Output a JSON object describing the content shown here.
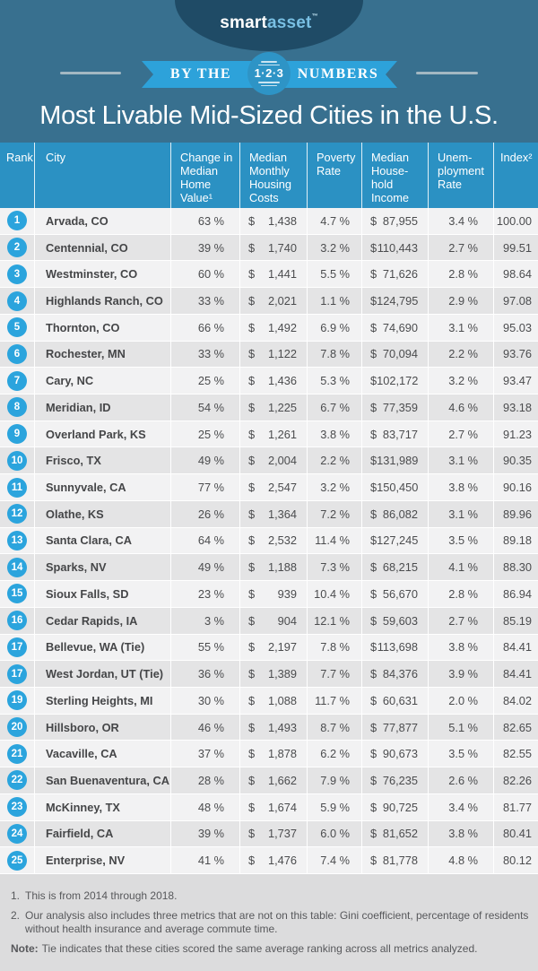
{
  "logo": {
    "smart": "smart",
    "asset": "asset",
    "tm": "™"
  },
  "banner": {
    "prefix": "BY THE",
    "numbers": "1·2·3",
    "suffix": "NUMBERS"
  },
  "chart_data": {
    "type": "table",
    "title": "Most Livable Mid-Sized Cities in the U.S.",
    "currency": "$",
    "columns": [
      "Rank",
      "City",
      "Change in Median Home Value¹",
      "Median Monthly Housing Costs",
      "Poverty Rate",
      "Median House-hold Income",
      "Unem-ployment Rate",
      "Index²"
    ],
    "rows": [
      {
        "rank": "1",
        "city": "Arvada, CO",
        "change": "63 %",
        "housing": "1,438",
        "poverty": "4.7 %",
        "income": "87,955",
        "unemployment": "3.4 %",
        "index": "100.00"
      },
      {
        "rank": "2",
        "city": "Centennial, CO",
        "change": "39 %",
        "housing": "1,740",
        "poverty": "3.2 %",
        "income": "110,443",
        "unemployment": "2.7 %",
        "index": "99.51"
      },
      {
        "rank": "3",
        "city": "Westminster, CO",
        "change": "60 %",
        "housing": "1,441",
        "poverty": "5.5 %",
        "income": "71,626",
        "unemployment": "2.8 %",
        "index": "98.64"
      },
      {
        "rank": "4",
        "city": "Highlands Ranch, CO",
        "change": "33 %",
        "housing": "2,021",
        "poverty": "1.1 %",
        "income": "124,795",
        "unemployment": "2.9 %",
        "index": "97.08"
      },
      {
        "rank": "5",
        "city": "Thornton, CO",
        "change": "66 %",
        "housing": "1,492",
        "poverty": "6.9 %",
        "income": "74,690",
        "unemployment": "3.1 %",
        "index": "95.03"
      },
      {
        "rank": "6",
        "city": "Rochester, MN",
        "change": "33 %",
        "housing": "1,122",
        "poverty": "7.8 %",
        "income": "70,094",
        "unemployment": "2.2 %",
        "index": "93.76"
      },
      {
        "rank": "7",
        "city": "Cary, NC",
        "change": "25 %",
        "housing": "1,436",
        "poverty": "5.3 %",
        "income": "102,172",
        "unemployment": "3.2 %",
        "index": "93.47"
      },
      {
        "rank": "8",
        "city": "Meridian, ID",
        "change": "54 %",
        "housing": "1,225",
        "poverty": "6.7 %",
        "income": "77,359",
        "unemployment": "4.6 %",
        "index": "93.18"
      },
      {
        "rank": "9",
        "city": "Overland Park, KS",
        "change": "25 %",
        "housing": "1,261",
        "poverty": "3.8 %",
        "income": "83,717",
        "unemployment": "2.7 %",
        "index": "91.23"
      },
      {
        "rank": "10",
        "city": "Frisco, TX",
        "change": "49 %",
        "housing": "2,004",
        "poverty": "2.2 %",
        "income": "131,989",
        "unemployment": "3.1 %",
        "index": "90.35"
      },
      {
        "rank": "11",
        "city": "Sunnyvale, CA",
        "change": "77 %",
        "housing": "2,547",
        "poverty": "3.2 %",
        "income": "150,450",
        "unemployment": "3.8 %",
        "index": "90.16"
      },
      {
        "rank": "12",
        "city": "Olathe, KS",
        "change": "26 %",
        "housing": "1,364",
        "poverty": "7.2 %",
        "income": "86,082",
        "unemployment": "3.1 %",
        "index": "89.96"
      },
      {
        "rank": "13",
        "city": "Santa Clara, CA",
        "change": "64 %",
        "housing": "2,532",
        "poverty": "11.4 %",
        "income": "127,245",
        "unemployment": "3.5 %",
        "index": "89.18"
      },
      {
        "rank": "14",
        "city": "Sparks, NV",
        "change": "49 %",
        "housing": "1,188",
        "poverty": "7.3 %",
        "income": "68,215",
        "unemployment": "4.1 %",
        "index": "88.30"
      },
      {
        "rank": "15",
        "city": "Sioux Falls, SD",
        "change": "23 %",
        "housing": "939",
        "poverty": "10.4 %",
        "income": "56,670",
        "unemployment": "2.8 %",
        "index": "86.94"
      },
      {
        "rank": "16",
        "city": "Cedar Rapids, IA",
        "change": "3 %",
        "housing": "904",
        "poverty": "12.1 %",
        "income": "59,603",
        "unemployment": "2.7 %",
        "index": "85.19"
      },
      {
        "rank": "17",
        "city": "Bellevue, WA (Tie)",
        "change": "55 %",
        "housing": "2,197",
        "poverty": "7.8 %",
        "income": "113,698",
        "unemployment": "3.8 %",
        "index": "84.41"
      },
      {
        "rank": "17",
        "city": "West Jordan, UT (Tie)",
        "change": "36 %",
        "housing": "1,389",
        "poverty": "7.7 %",
        "income": "84,376",
        "unemployment": "3.9 %",
        "index": "84.41"
      },
      {
        "rank": "19",
        "city": "Sterling Heights, MI",
        "change": "30 %",
        "housing": "1,088",
        "poverty": "11.7 %",
        "income": "60,631",
        "unemployment": "2.0 %",
        "index": "84.02"
      },
      {
        "rank": "20",
        "city": "Hillsboro, OR",
        "change": "46 %",
        "housing": "1,493",
        "poverty": "8.7 %",
        "income": "77,877",
        "unemployment": "5.1 %",
        "index": "82.65"
      },
      {
        "rank": "21",
        "city": "Vacaville, CA",
        "change": "37 %",
        "housing": "1,878",
        "poverty": "6.2 %",
        "income": "90,673",
        "unemployment": "3.5 %",
        "index": "82.55"
      },
      {
        "rank": "22",
        "city": "San Buenaventura, CA",
        "change": "28 %",
        "housing": "1,662",
        "poverty": "7.9 %",
        "income": "76,235",
        "unemployment": "2.6 %",
        "index": "82.26"
      },
      {
        "rank": "23",
        "city": "McKinney, TX",
        "change": "48 %",
        "housing": "1,674",
        "poverty": "5.9 %",
        "income": "90,725",
        "unemployment": "3.4 %",
        "index": "81.77"
      },
      {
        "rank": "24",
        "city": "Fairfield, CA",
        "change": "39 %",
        "housing": "1,737",
        "poverty": "6.0 %",
        "income": "81,652",
        "unemployment": "3.8 %",
        "index": "80.41"
      },
      {
        "rank": "25",
        "city": "Enterprise, NV",
        "change": "41 %",
        "housing": "1,476",
        "poverty": "7.4 %",
        "income": "81,778",
        "unemployment": "4.8 %",
        "index": "80.12"
      }
    ]
  },
  "footnotes": {
    "items": [
      {
        "marker": "1.",
        "text": "This is from 2014 through 2018."
      },
      {
        "marker": "2.",
        "text": "Our analysis also includes three metrics that are not on this table: Gini coefficient, percentage of residents without health insurance and average commute time."
      }
    ],
    "note_label": "Note:",
    "note_text": "Tie indicates that these cities scored the same average ranking across all metrics analyzed."
  },
  "colors": {
    "background_teal": "#38708f",
    "navy_arch": "#1f4b66",
    "logo_asset_blue": "#79c0e4",
    "ribbon_blue": "#2da2da",
    "ribbon_circle_blue": "#2e94c6",
    "table_header_blue": "#2b91c3",
    "row_light": "#f2f2f3",
    "row_dark": "#e4e4e5",
    "rank_badge_blue": "#2ba4dd",
    "text_dark": "#4b4c4e",
    "footer_bg": "#dcdcdd",
    "footer_text": "#57585b"
  }
}
